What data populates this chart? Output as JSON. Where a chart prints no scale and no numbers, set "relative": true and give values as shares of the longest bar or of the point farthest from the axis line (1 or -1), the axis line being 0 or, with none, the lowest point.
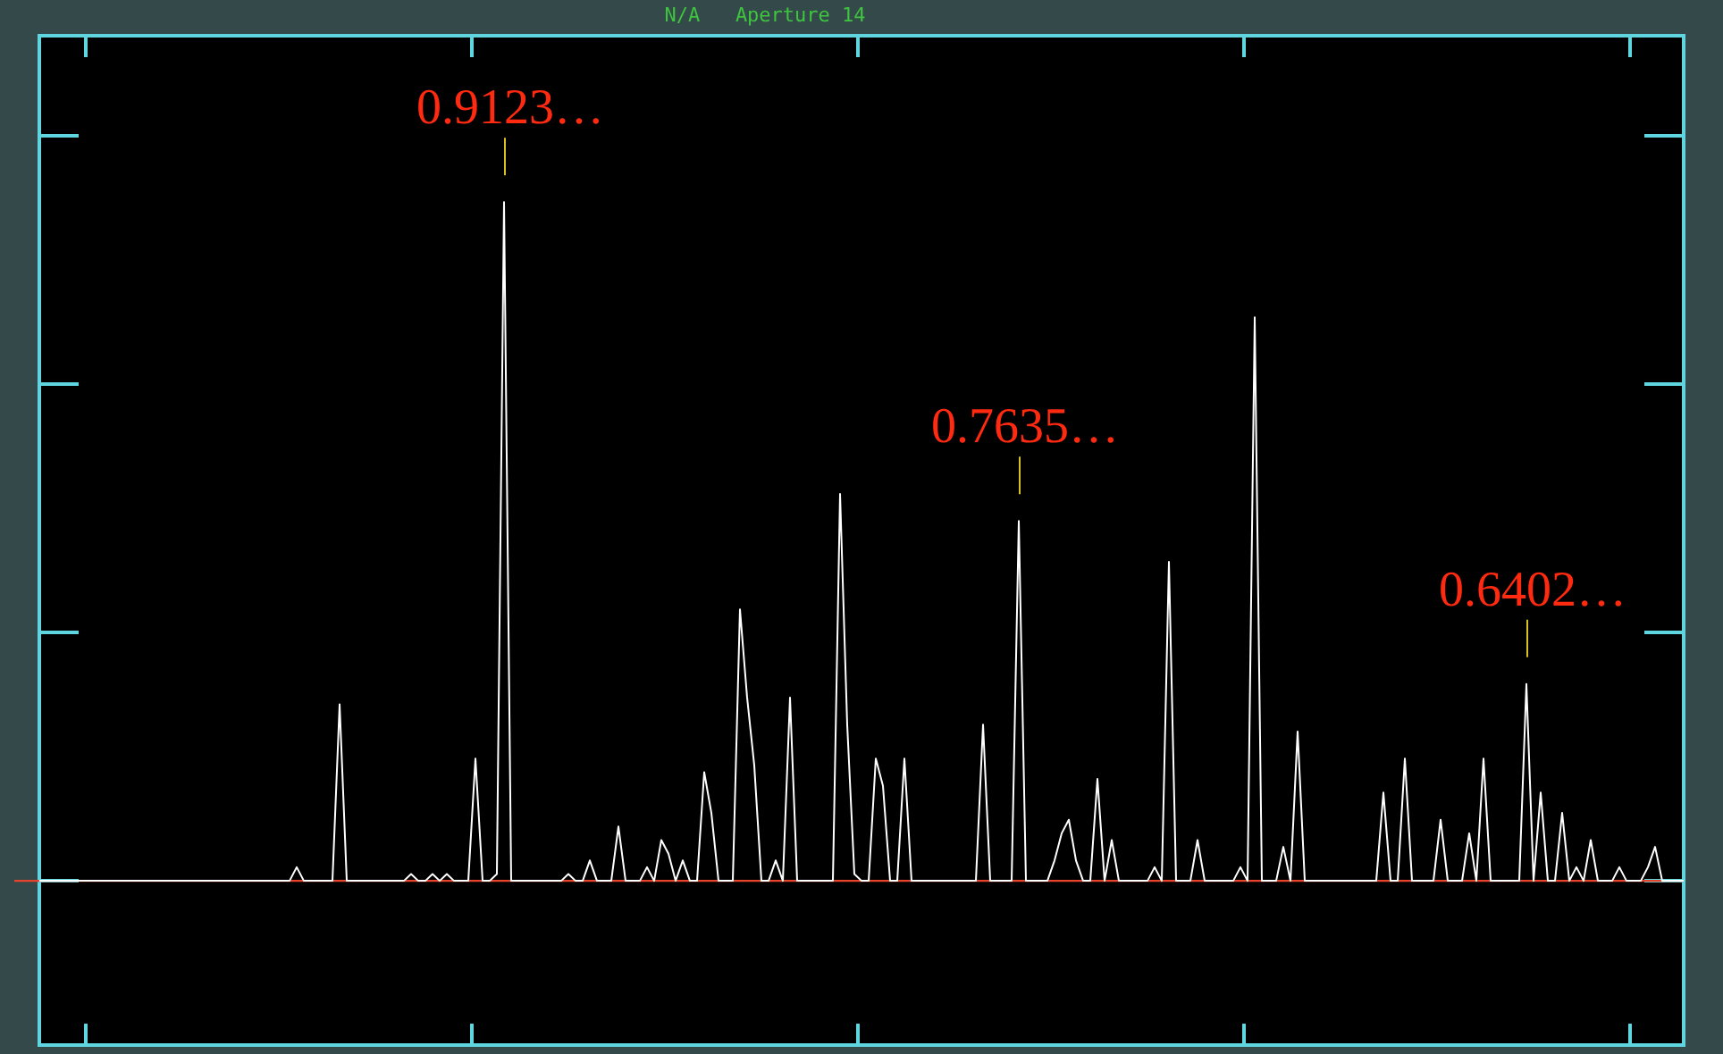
{
  "chart_data": {
    "type": "line",
    "title": "N/A   Aperture 14",
    "relative": true,
    "marker": "none",
    "categories": [
      null,
      null,
      null,
      null,
      null,
      null,
      null,
      null,
      null,
      null,
      null,
      null,
      null,
      null,
      null,
      null,
      null,
      null,
      null,
      null,
      null,
      null,
      null,
      null,
      null,
      null,
      null,
      null,
      null,
      null,
      null,
      null,
      null,
      null,
      null,
      null,
      null,
      null,
      null,
      null,
      null,
      null,
      null,
      null,
      null,
      null,
      null,
      null,
      null,
      null,
      null,
      null,
      null,
      null,
      null,
      null,
      null,
      null,
      null,
      null,
      null,
      null,
      null,
      null,
      null,
      null,
      null,
      null,
      null,
      null,
      null,
      null,
      null,
      null,
      null,
      null,
      null,
      null,
      null,
      null,
      null,
      null,
      null,
      null,
      null,
      null,
      null,
      null,
      null,
      null,
      null,
      null,
      null,
      null,
      null,
      null,
      null,
      null,
      null,
      null,
      null,
      null,
      null,
      null,
      null,
      null,
      null,
      null,
      null,
      null,
      null,
      null,
      null,
      null,
      null,
      null,
      null,
      null,
      null,
      null,
      null,
      null,
      null,
      null,
      null,
      null,
      null,
      null,
      null,
      null,
      null,
      null,
      null,
      null,
      null,
      null,
      null,
      null,
      null,
      null,
      null,
      null,
      null,
      null,
      null,
      null,
      null,
      null,
      null,
      null,
      null,
      null,
      null,
      null,
      null,
      null,
      null,
      null,
      null,
      null,
      null,
      null,
      null,
      null,
      null,
      null,
      null,
      null,
      null,
      null,
      null,
      null,
      null,
      null,
      null,
      null,
      null,
      null,
      null,
      null,
      null,
      null,
      null,
      null,
      null,
      null,
      null,
      null,
      null,
      null,
      null,
      null,
      null,
      null,
      null,
      null,
      null,
      null,
      null,
      null,
      null,
      null,
      null,
      null,
      null,
      null,
      null,
      null,
      null,
      null,
      null,
      null,
      null,
      null,
      null,
      null,
      null,
      null,
      null,
      null,
      null,
      null,
      null,
      null,
      null,
      null,
      null,
      null,
      null,
      null,
      null
    ],
    "series": [
      {
        "color": "#ffffff",
        "values": [
          0,
          0,
          0,
          0,
          0,
          0,
          0,
          0,
          0,
          0,
          0,
          0,
          0,
          0,
          0,
          0,
          0,
          0,
          0,
          0,
          0,
          0,
          0,
          0,
          0,
          0,
          0,
          0,
          0,
          0,
          0,
          0,
          0,
          0,
          0,
          0,
          0.02,
          0,
          0,
          0,
          0,
          0,
          0.26,
          0,
          0,
          0,
          0,
          0,
          0,
          0,
          0,
          0,
          0.01,
          0,
          0,
          0.01,
          0,
          0.01,
          0,
          0,
          0,
          0.18,
          0,
          0,
          0.01,
          1,
          0,
          0,
          0,
          0,
          0,
          0,
          0,
          0,
          0.01,
          0,
          0,
          0.03,
          0,
          0,
          0,
          0.08,
          0,
          0,
          0,
          0.02,
          0,
          0.06,
          0.04,
          0,
          0.03,
          0,
          0,
          0.16,
          0.1,
          0,
          0,
          0,
          0.4,
          0.27,
          0.17,
          0,
          0,
          0.03,
          0,
          0.27,
          0,
          0,
          0,
          0,
          0,
          0,
          0.57,
          0.23,
          0.01,
          0,
          0,
          0.18,
          0.14,
          0,
          0,
          0.18,
          0,
          0,
          0,
          0,
          0,
          0,
          0,
          0,
          0,
          0,
          0.23,
          0,
          0,
          0,
          0,
          0.53,
          0,
          0,
          0,
          0,
          0.03,
          0.07,
          0.09,
          0.03,
          0,
          0,
          0.15,
          0,
          0.06,
          0,
          0,
          0,
          0,
          0,
          0.02,
          0,
          0.47,
          0,
          0,
          0,
          0.06,
          0,
          0,
          0,
          0,
          0,
          0.02,
          0,
          0.83,
          0,
          0,
          0,
          0.05,
          0,
          0.22,
          0,
          0,
          0,
          0,
          0,
          0,
          0,
          0,
          0,
          0,
          0,
          0.13,
          0,
          0,
          0.18,
          0,
          0,
          0,
          0,
          0.09,
          0,
          0,
          0,
          0.07,
          0,
          0.18,
          0,
          0,
          0,
          0,
          0,
          0.29,
          0,
          0.13,
          0,
          0,
          0.1,
          0,
          0.02,
          0,
          0.06,
          0,
          0,
          0,
          0.02,
          0,
          0,
          0,
          0.02,
          0.05,
          0,
          0,
          0,
          0
        ]
      }
    ],
    "ref_lines": [
      {
        "axis": "y",
        "value": 0,
        "color": "#e8442c"
      }
    ],
    "annotations": [
      {
        "text": "0.9123…",
        "y": 1
      },
      {
        "text": "0.7635…",
        "y": 0.53
      },
      {
        "text": "0.6402…",
        "y": 0.29
      }
    ]
  }
}
